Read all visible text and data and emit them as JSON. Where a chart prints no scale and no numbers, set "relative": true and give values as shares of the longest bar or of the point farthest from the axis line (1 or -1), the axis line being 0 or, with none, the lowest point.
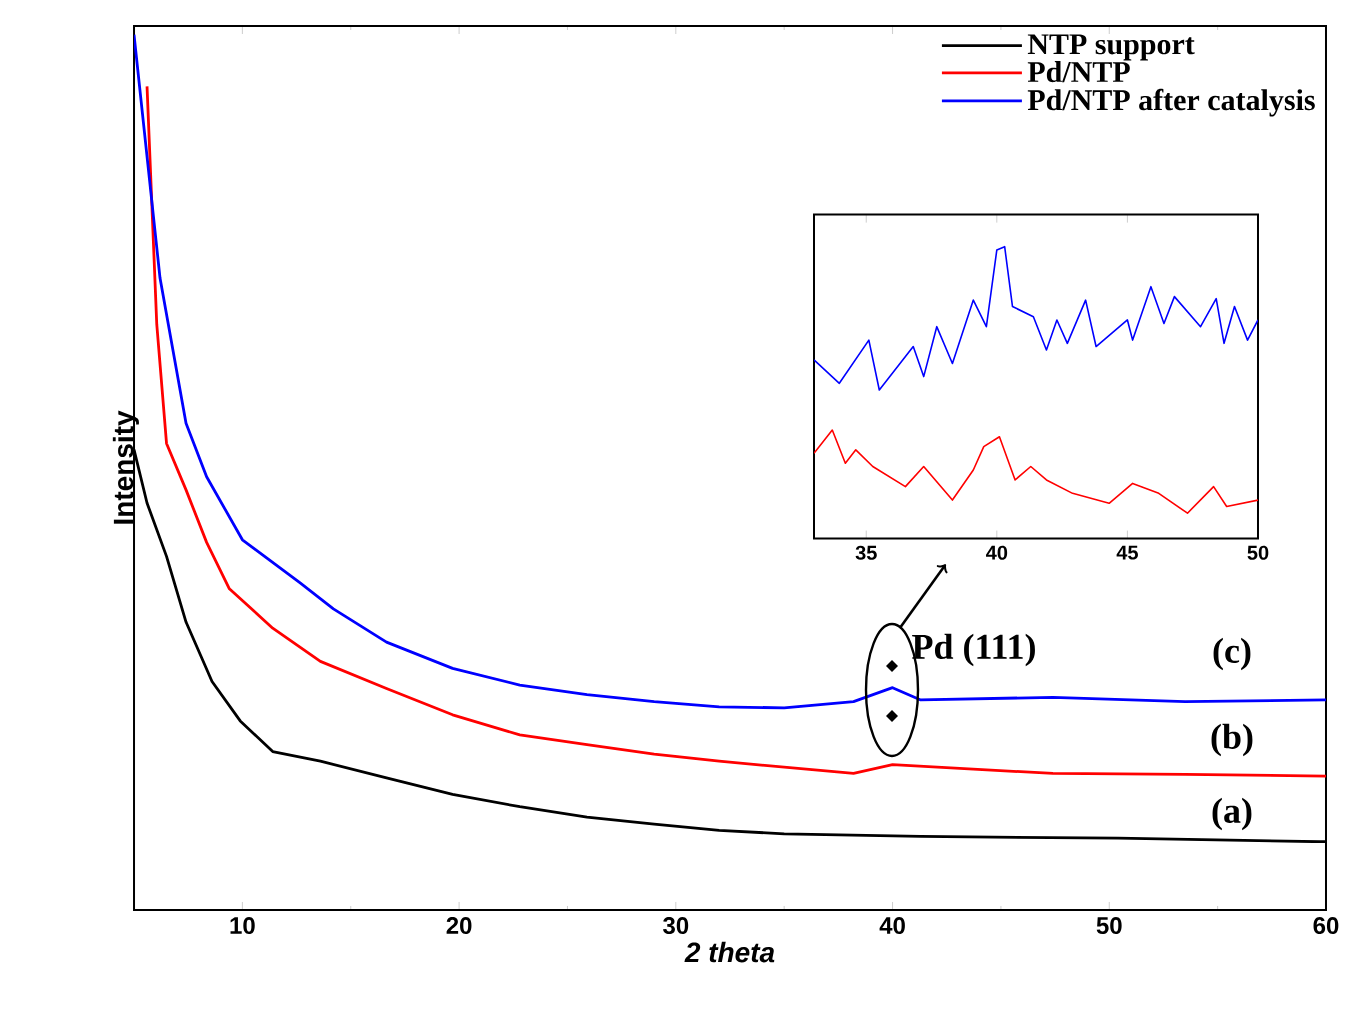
{
  "chart_data": [
    {
      "type": "line",
      "xlabel": "2 theta",
      "ylabel": "Intensity",
      "xlim": [
        5,
        60
      ],
      "xticks": [
        10,
        20,
        30,
        40,
        50,
        60
      ],
      "relative": true,
      "legend": "top right",
      "annotations": [
        "(a)",
        "(b)",
        "(c)",
        "Pd (111)"
      ],
      "series": [
        {
          "name": "NTP support",
          "color": "#000000",
          "x": [
            5,
            5.6,
            6.5,
            7.4,
            8.6,
            9.9,
            11.4,
            13.6,
            16.65,
            19.7,
            22.8,
            25.9,
            29.0,
            32.0,
            35.0,
            41.3,
            50.4,
            59.7,
            60
          ],
          "values": [
            0.526,
            0.465,
            0.404,
            0.329,
            0.261,
            0.216,
            0.181,
            0.17,
            0.151,
            0.132,
            0.118,
            0.106,
            0.098,
            0.091,
            0.087,
            0.084,
            0.082,
            0.078,
            0.078
          ]
        },
        {
          "name": "Pd/NTP",
          "color": "#ff0000",
          "x": [
            5.6,
            6.05,
            6.5,
            7.4,
            8.35,
            9.4,
            11.4,
            13.6,
            16.65,
            19.7,
            22.8,
            25.9,
            29.0,
            32.0,
            38.2,
            40.0,
            47.4,
            53.5,
            60
          ],
          "values": [
            0.941,
            0.669,
            0.533,
            0.48,
            0.42,
            0.367,
            0.322,
            0.284,
            0.253,
            0.223,
            0.2,
            0.189,
            0.178,
            0.17,
            0.156,
            0.166,
            0.156,
            0.155,
            0.153
          ]
        },
        {
          "name": "Pd/NTP after catalysis",
          "color": "#0000ff",
          "x": [
            5,
            6.2,
            7.4,
            8.35,
            10.0,
            12.65,
            14.2,
            16.65,
            19.7,
            22.8,
            25.9,
            29.0,
            32.0,
            35.0,
            38.2,
            40.0,
            41.3,
            47.4,
            53.5,
            60
          ],
          "values": [
            1.0,
            0.722,
            0.556,
            0.495,
            0.423,
            0.374,
            0.344,
            0.306,
            0.276,
            0.257,
            0.246,
            0.238,
            0.232,
            0.231,
            0.238,
            0.254,
            0.24,
            0.243,
            0.238,
            0.24
          ]
        }
      ]
    },
    {
      "type": "line",
      "xlim": [
        33,
        50
      ],
      "xticks": [
        35,
        40,
        45,
        50
      ],
      "relative": true,
      "series": [
        {
          "color": "#0000ff",
          "x": [
            33,
            33.97,
            35.1,
            35.5,
            36.8,
            37.2,
            37.7,
            38.3,
            39.1,
            39.6,
            40.0,
            40.3,
            40.6,
            41.4,
            41.9,
            42.3,
            42.7,
            43.4,
            43.8,
            45.0,
            45.2,
            45.9,
            46.4,
            46.8,
            47.8,
            48.4,
            48.7,
            49.1,
            49.6,
            50
          ],
          "values": [
            0.612,
            0.532,
            0.68,
            0.509,
            0.658,
            0.555,
            0.726,
            0.6,
            0.817,
            0.726,
            0.989,
            1.0,
            0.795,
            0.76,
            0.646,
            0.749,
            0.669,
            0.817,
            0.658,
            0.749,
            0.68,
            0.863,
            0.737,
            0.829,
            0.726,
            0.822,
            0.669,
            0.795,
            0.68,
            0.749
          ]
        },
        {
          "color": "#ff0000",
          "x": [
            33,
            33.7,
            34.2,
            34.6,
            35.25,
            36.5,
            37.2,
            38.3,
            39.1,
            39.5,
            40.1,
            40.7,
            41.3,
            41.9,
            42.9,
            44.3,
            45.2,
            46.2,
            47.3,
            48.3,
            48.8,
            50
          ],
          "values": [
            0.292,
            0.372,
            0.258,
            0.304,
            0.247,
            0.178,
            0.247,
            0.132,
            0.235,
            0.315,
            0.349,
            0.201,
            0.247,
            0.201,
            0.155,
            0.121,
            0.189,
            0.155,
            0.087,
            0.178,
            0.11,
            0.132
          ]
        }
      ]
    }
  ]
}
